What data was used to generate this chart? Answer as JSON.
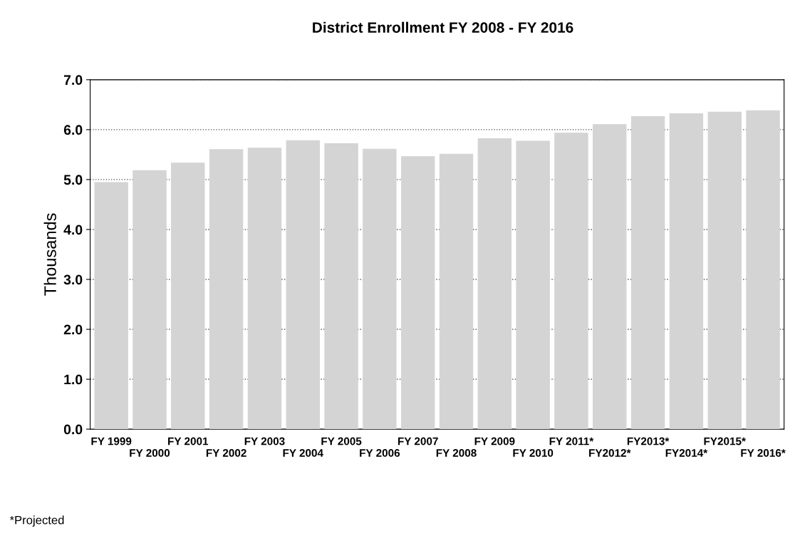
{
  "chart_data": {
    "type": "bar",
    "title": "District Enrollment FY 2008 - FY 2016",
    "ylabel": "Thousands",
    "categories": [
      "FY 1999",
      "FY 2000",
      "FY 2001",
      "FY 2002",
      "FY 2003",
      "FY 2004",
      "FY 2005",
      "FY 2006",
      "FY 2007",
      "FY 2008",
      "FY 2009",
      "FY 2010",
      "FY 2011*",
      "FY2012*",
      "FY2013*",
      "FY2014*",
      "FY2015*",
      "FY 2016*"
    ],
    "values": [
      4.94,
      5.18,
      5.33,
      5.6,
      5.63,
      5.78,
      5.72,
      5.61,
      5.46,
      5.51,
      5.82,
      5.77,
      5.93,
      6.1,
      6.26,
      6.32,
      6.35,
      6.38
    ],
    "color": "#d4d4d4",
    "ylim": [
      0,
      7
    ],
    "yticks": [
      {
        "value": 0,
        "label": "0.0"
      },
      {
        "value": 1,
        "label": "1.0"
      },
      {
        "value": 2,
        "label": "2.0"
      },
      {
        "value": 3,
        "label": "3.0"
      },
      {
        "value": 4,
        "label": "4.0"
      },
      {
        "value": 5,
        "label": "5.0"
      },
      {
        "value": 6,
        "label": "6.0"
      },
      {
        "value": 7,
        "label": "7.0"
      }
    ],
    "grid": "y",
    "annotations": [
      "*Projected"
    ]
  }
}
